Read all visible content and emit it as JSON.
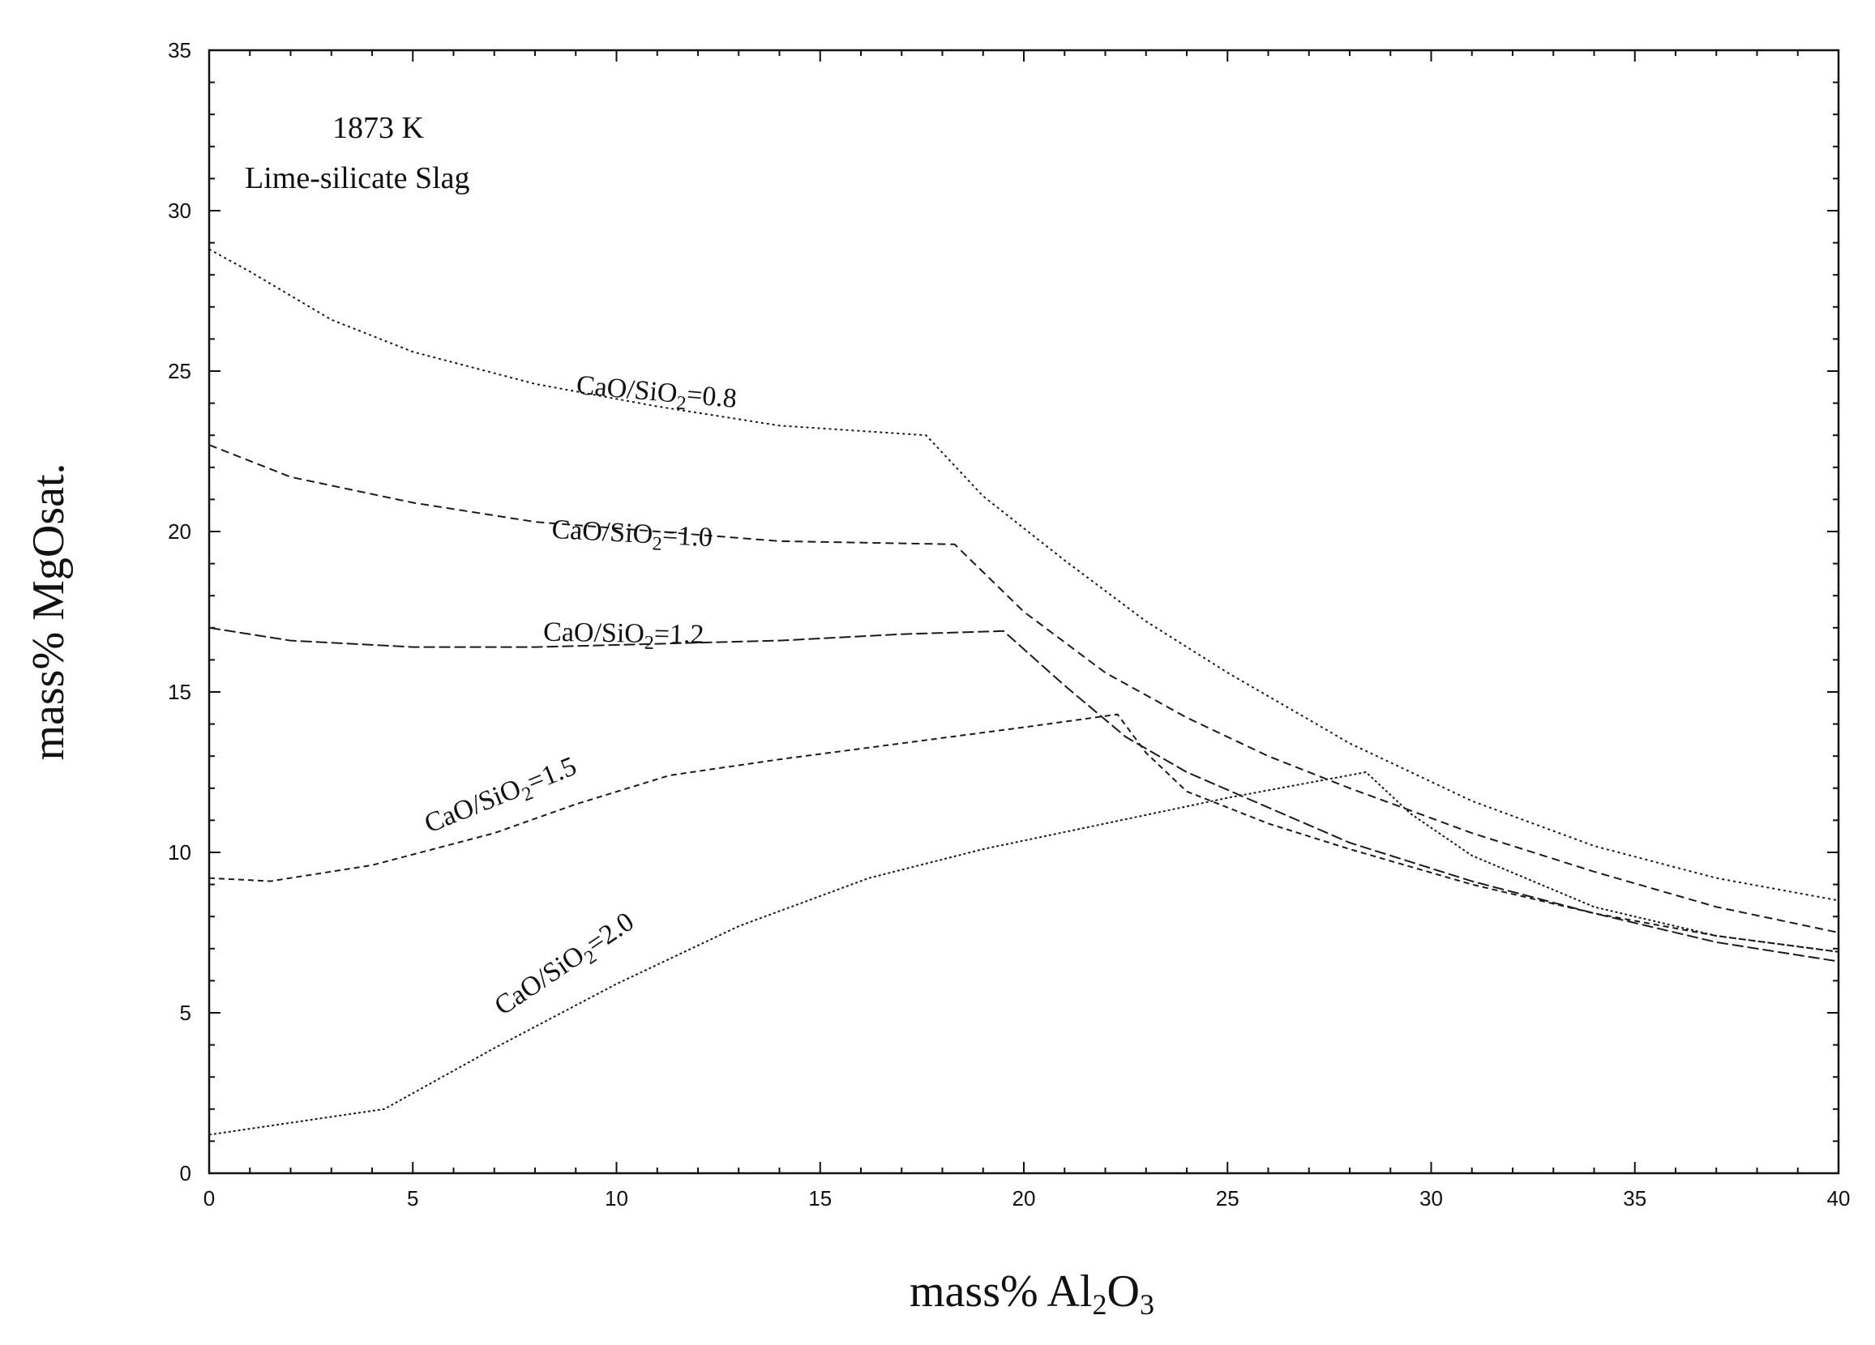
{
  "chart_data": {
    "type": "line",
    "title": "",
    "annotations": [
      "1873 K",
      "Lime-silicate Slag"
    ],
    "xlabel": {
      "prefix": "mass% Al",
      "sub1": "2",
      "mid": "O",
      "sub2": "3"
    },
    "ylabel": "mass% MgOsat.",
    "xlim": [
      0,
      40
    ],
    "ylim": [
      0,
      35
    ],
    "xticks": [
      0,
      5,
      10,
      15,
      20,
      25,
      30,
      35,
      40
    ],
    "yticks": [
      0,
      5,
      10,
      15,
      20,
      25,
      30,
      35
    ],
    "grid": false,
    "legend": "none",
    "series": [
      {
        "name": "CaO/SiO2=0.8",
        "label": {
          "pre": "CaO/SiO",
          "sub": "2",
          "post": "=0.8",
          "x": 9.0,
          "y": 24.3,
          "angle": 5
        },
        "x": [
          0,
          1,
          3,
          5,
          8,
          11,
          14,
          17.6,
          19,
          21,
          23,
          25,
          28,
          31,
          34,
          37,
          40
        ],
        "y": [
          28.8,
          28.1,
          26.6,
          25.6,
          24.6,
          23.9,
          23.3,
          23.0,
          21.1,
          19.1,
          17.2,
          15.6,
          13.4,
          11.6,
          10.2,
          9.2,
          8.5
        ]
      },
      {
        "name": "CaO/SiO2=1.0",
        "label": {
          "pre": "CaO/SiO",
          "sub": "2",
          "post": "=1.0",
          "x": 8.4,
          "y": 19.8,
          "angle": 3
        },
        "x": [
          0,
          2,
          5,
          8,
          11,
          14,
          18.3,
          20,
          22,
          24,
          26,
          28,
          31,
          34,
          37,
          40
        ],
        "y": [
          22.7,
          21.7,
          20.9,
          20.3,
          20.0,
          19.7,
          19.6,
          17.5,
          15.6,
          14.2,
          13.0,
          12.0,
          10.6,
          9.4,
          8.3,
          7.5
        ]
      },
      {
        "name": "CaO/SiO2=1.2",
        "label": {
          "pre": "CaO/SiO",
          "sub": "2",
          "post": "=1.2",
          "x": 8.2,
          "y": 16.6,
          "angle": 1
        },
        "x": [
          0,
          2,
          5,
          8,
          11,
          14,
          17,
          19.5,
          21,
          22.5,
          24,
          26,
          28,
          31,
          34,
          37,
          40
        ],
        "y": [
          17.0,
          16.6,
          16.4,
          16.4,
          16.5,
          16.6,
          16.8,
          16.9,
          15.2,
          13.6,
          12.5,
          11.4,
          10.3,
          9.1,
          8.1,
          7.2,
          6.6
        ]
      },
      {
        "name": "CaO/SiO2=1.5",
        "label": {
          "pre": "CaO/SiO",
          "sub": "2",
          "post": "=1.5",
          "x": 5.4,
          "y": 10.6,
          "angle": -22
        },
        "x": [
          0,
          1.5,
          4,
          7,
          9,
          11.3,
          14,
          17,
          20,
          22.3,
          23,
          24,
          26,
          28,
          31,
          34,
          37,
          40
        ],
        "y": [
          9.2,
          9.1,
          9.6,
          10.6,
          11.5,
          12.4,
          12.9,
          13.4,
          13.9,
          14.3,
          13.1,
          11.9,
          10.9,
          10.1,
          9.0,
          8.1,
          7.4,
          6.9
        ]
      },
      {
        "name": "CaO/SiO2=2.0",
        "label": {
          "pre": "CaO/SiO",
          "sub": "2",
          "post": "=2.0",
          "x": 7.2,
          "y": 4.9,
          "angle": -34
        },
        "x": [
          0,
          4.3,
          7,
          10,
          13,
          16.2,
          19,
          22,
          25,
          28.4,
          29.5,
          31,
          34,
          37,
          40
        ],
        "y": [
          1.2,
          2.0,
          3.9,
          5.9,
          7.7,
          9.2,
          10.1,
          10.9,
          11.7,
          12.5,
          11.2,
          9.9,
          8.3,
          7.4,
          6.9
        ]
      }
    ]
  }
}
